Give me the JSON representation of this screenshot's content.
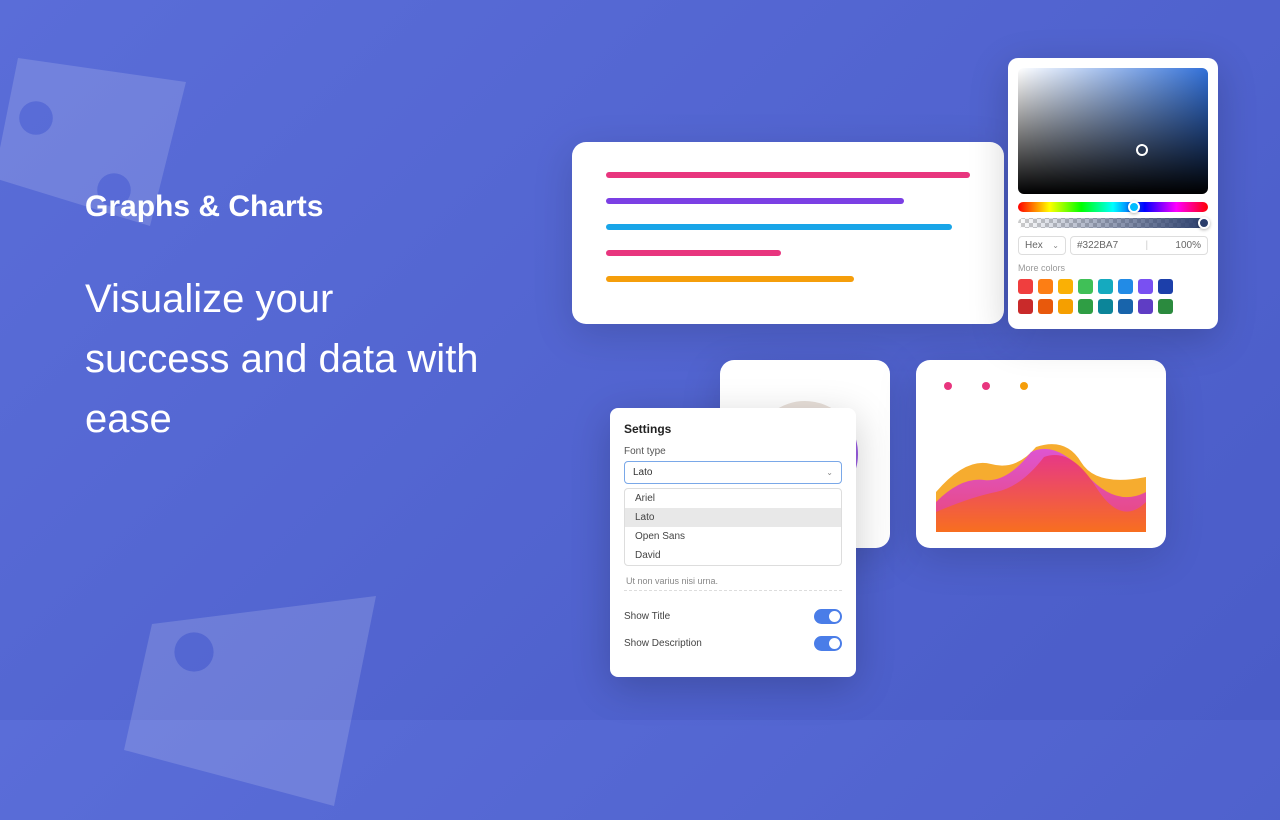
{
  "background": {
    "gradient_from": "#5a6dd8",
    "gradient_to": "#4a5cc8"
  },
  "hero": {
    "title": "Graphs & Charts",
    "subtitle": "Visualize your success and data with ease"
  },
  "bars_card": {
    "bars": [
      {
        "color": "#e8357e",
        "width_pct": 100
      },
      {
        "color": "#7b3fe4",
        "width_pct": 82
      },
      {
        "color": "#18a5e8",
        "width_pct": 95
      },
      {
        "color": "#e8357e",
        "width_pct": 48
      },
      {
        "color": "#f59e0b",
        "width_pct": 68
      }
    ]
  },
  "donut": {
    "segments": [
      {
        "color": "#9b5de5",
        "pct": 18
      },
      {
        "color": "#f4a020",
        "pct": 46
      },
      {
        "color": "#e8e0da",
        "pct": 36
      }
    ]
  },
  "area_chart": {
    "dots": [
      "#e8357e",
      "#e8357e",
      "#f59e0b"
    ],
    "colors": {
      "a": "#e8357e",
      "b": "#b930c8",
      "c": "#f59e0b"
    }
  },
  "settings": {
    "title": "Settings",
    "font_label": "Font type",
    "selected_font": "Lato",
    "options": [
      "Ariel",
      "Lato",
      "Open Sans",
      "David"
    ],
    "description": "Ut non varius nisi urna.",
    "toggles": [
      {
        "label": "Show Title",
        "on": true
      },
      {
        "label": "Show Description",
        "on": true
      }
    ]
  },
  "color_picker": {
    "format_label": "Hex",
    "hex_value": "#322BA7",
    "opacity": "100%",
    "more_label": "More colors",
    "swatch_rows": [
      [
        "#f03e3e",
        "#fd7e14",
        "#fab005",
        "#40c057",
        "#15aabf",
        "#228be6",
        "#7950f2",
        "#1c3faa"
      ],
      [
        "#c92a2a",
        "#e8590c",
        "#f59f00",
        "#2f9e44",
        "#0c8599",
        "#1864ab",
        "#5f3dc4",
        "#2b8a3e"
      ]
    ]
  }
}
